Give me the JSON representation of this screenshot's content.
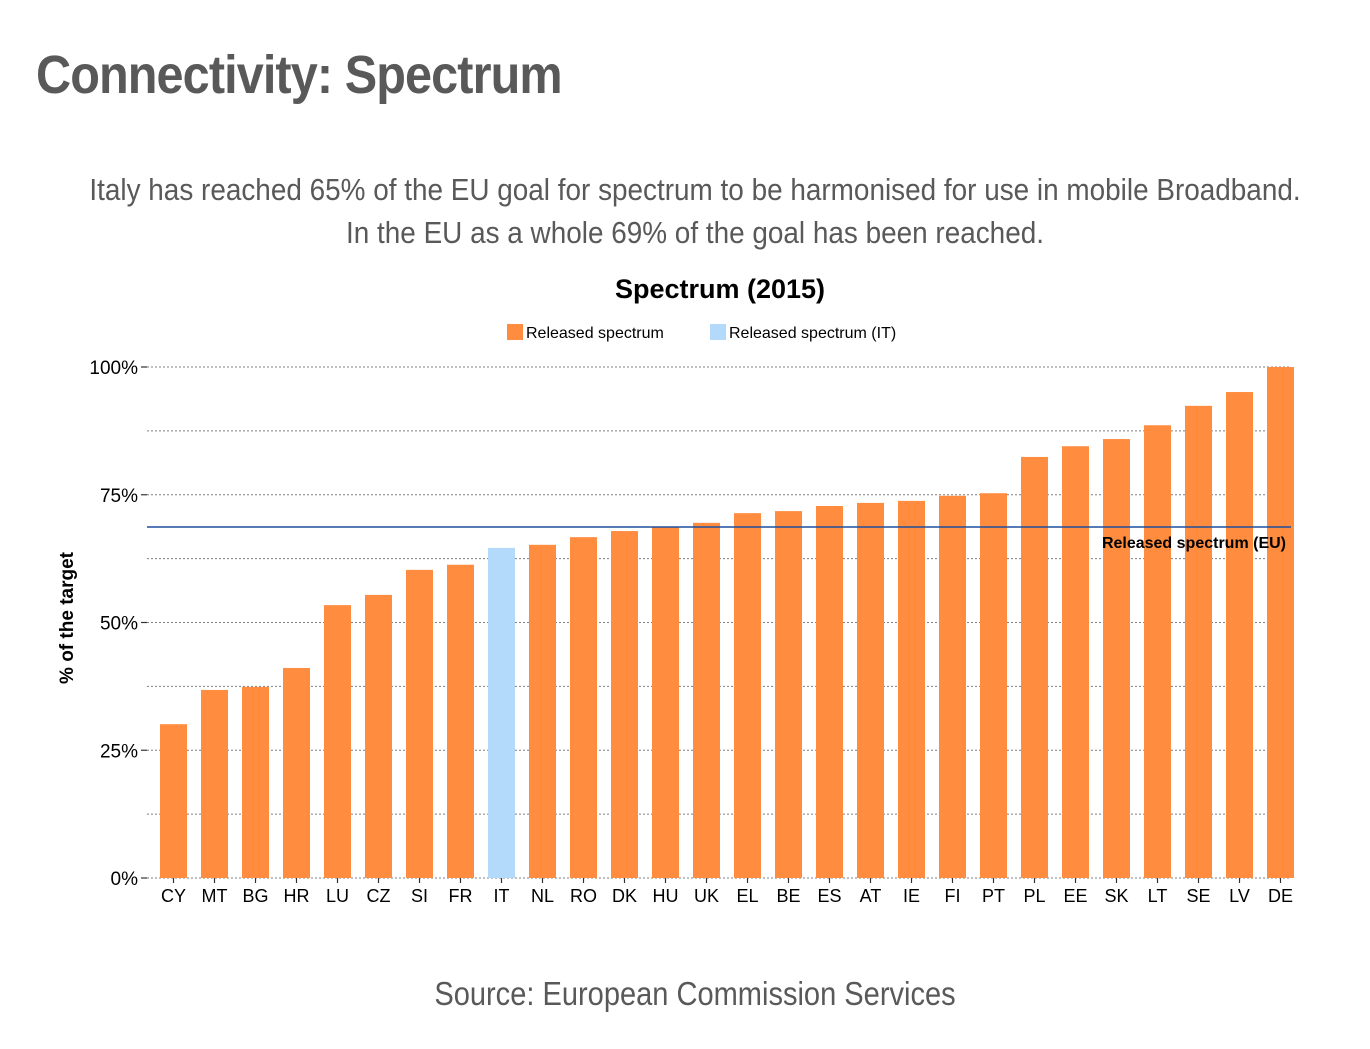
{
  "page": {
    "title": "Connectivity: Spectrum",
    "subtitle_line1": "Italy has reached 65% of the EU goal for spectrum to be harmonised for use in mobile Broadband.",
    "subtitle_line2": "In the EU as a whole 69% of the goal has been reached.",
    "source": "Source: European Commission Services"
  },
  "chart_data": {
    "type": "bar",
    "title": "Spectrum (2015)",
    "xlabel": "",
    "ylabel": "% of the target",
    "ylim": [
      0,
      100
    ],
    "yticks": [
      0,
      25,
      50,
      75,
      100
    ],
    "ytick_labels": [
      "0%",
      "25%",
      "50%",
      "75%",
      "100%"
    ],
    "minor_gridlines": [
      12.5,
      37.5,
      62.5,
      87.5
    ],
    "grid": true,
    "legend_position": "top-center",
    "legend": [
      {
        "label": "Released spectrum",
        "color": "#FF8C3F"
      },
      {
        "label": "Released spectrum (IT)",
        "color": "#B4DAFB"
      }
    ],
    "categories": [
      "CY",
      "MT",
      "BG",
      "HR",
      "LU",
      "CZ",
      "SI",
      "FR",
      "IT",
      "NL",
      "RO",
      "DK",
      "HU",
      "UK",
      "EL",
      "BE",
      "ES",
      "AT",
      "IE",
      "FI",
      "PT",
      "PL",
      "EE",
      "SK",
      "LT",
      "SE",
      "LV",
      "DE"
    ],
    "series": [
      {
        "name": "Released spectrum",
        "values": [
          30.1,
          36.8,
          37.4,
          41.1,
          53.4,
          55.4,
          60.3,
          61.3,
          64.6,
          65.2,
          66.7,
          67.9,
          68.7,
          69.5,
          71.4,
          71.8,
          72.8,
          73.4,
          73.8,
          74.8,
          75.3,
          82.4,
          84.5,
          85.9,
          88.6,
          92.4,
          95.1,
          100.0
        ]
      }
    ],
    "highlight_category": "IT",
    "reference_line": {
      "label": "Released spectrum (EU)",
      "value": 68.7,
      "color": "#1F4E9E"
    },
    "colors": {
      "bar": "#FF8C3F",
      "highlight": "#B4DAFB",
      "grid": "#7f7f7f"
    }
  }
}
